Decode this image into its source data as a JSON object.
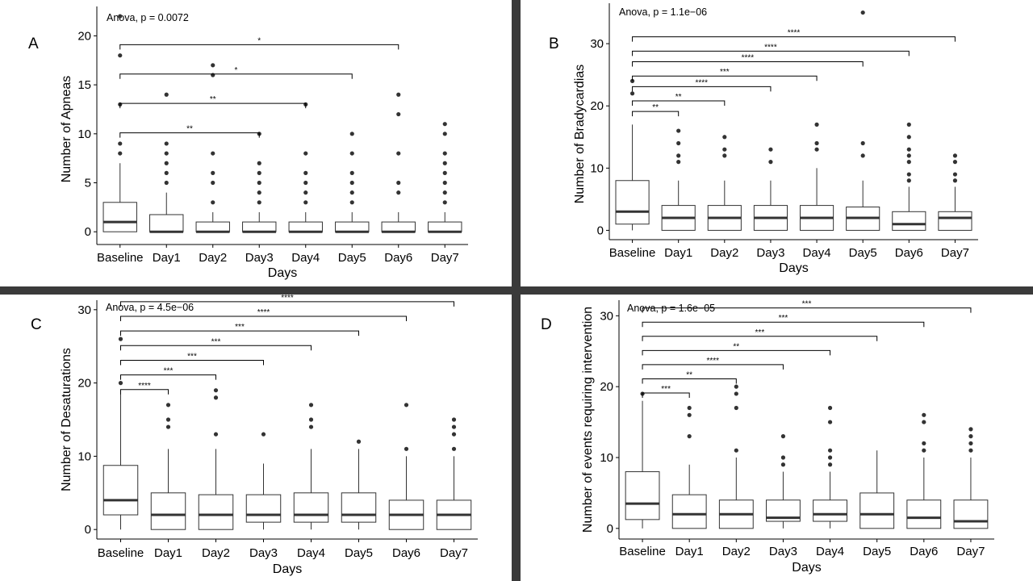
{
  "colors": {
    "divider": "#3a3a3a",
    "box_edge": "#333333",
    "points": "#333333"
  },
  "chart_data": [
    {
      "panel": "A",
      "type": "box",
      "anova_text": "Anova, p = 0.0072",
      "xlabel": "Days",
      "ylabel": "Number of Apneas",
      "ylim": [
        -1.3,
        23
      ],
      "yticks": [
        0,
        5,
        10,
        15,
        20
      ],
      "categories": [
        "Baseline",
        "Day1",
        "Day2",
        "Day3",
        "Day4",
        "Day5",
        "Day6",
        "Day7"
      ],
      "boxes": [
        {
          "q1": 0,
          "median": 1,
          "q3": 3,
          "lo": 0,
          "hi": 7,
          "outliers": [
            8,
            9,
            13,
            18,
            22
          ]
        },
        {
          "q1": 0,
          "median": 0,
          "q3": 1.75,
          "lo": 0,
          "hi": 4,
          "outliers": [
            5,
            6,
            7,
            8,
            9,
            14
          ]
        },
        {
          "q1": 0,
          "median": 0,
          "q3": 1,
          "lo": 0,
          "hi": 2,
          "outliers": [
            3,
            5,
            6,
            8,
            16,
            17
          ]
        },
        {
          "q1": 0,
          "median": 0,
          "q3": 1,
          "lo": 0,
          "hi": 2,
          "outliers": [
            3,
            4,
            5,
            6,
            7,
            10
          ]
        },
        {
          "q1": 0,
          "median": 0,
          "q3": 1,
          "lo": 0,
          "hi": 2,
          "outliers": [
            3,
            4,
            5,
            6,
            8,
            13
          ]
        },
        {
          "q1": 0,
          "median": 0,
          "q3": 1,
          "lo": 0,
          "hi": 2,
          "outliers": [
            3,
            4,
            5,
            6,
            8,
            10
          ]
        },
        {
          "q1": 0,
          "median": 0,
          "q3": 1,
          "lo": 0,
          "hi": 2,
          "outliers": [
            4,
            5,
            8,
            12,
            14
          ]
        },
        {
          "q1": 0,
          "median": 0,
          "q3": 1,
          "lo": 0,
          "hi": 2,
          "outliers": [
            3,
            4,
            5,
            6,
            7,
            8,
            10,
            11
          ]
        }
      ],
      "comparisons": [
        {
          "from": 0,
          "to": 3,
          "y": 10.1,
          "label": "**"
        },
        {
          "from": 0,
          "to": 4,
          "y": 13.1,
          "label": "**"
        },
        {
          "from": 0,
          "to": 5,
          "y": 16.1,
          "label": "*"
        },
        {
          "from": 0,
          "to": 6,
          "y": 19.1,
          "label": "*"
        }
      ]
    },
    {
      "panel": "B",
      "type": "box",
      "anova_text": "Anova, p = 1.1e−06",
      "xlabel": "Days",
      "ylabel": "Number of Bradycardias",
      "ylim": [
        -1.5,
        36.5
      ],
      "yticks": [
        0,
        10,
        20,
        30
      ],
      "categories": [
        "Baseline",
        "Day1",
        "Day2",
        "Day3",
        "Day4",
        "Day5",
        "Day6",
        "Day7"
      ],
      "boxes": [
        {
          "q1": 1,
          "median": 3,
          "q3": 8,
          "lo": 0,
          "hi": 17,
          "outliers": [
            22,
            24
          ]
        },
        {
          "q1": 0,
          "median": 2,
          "q3": 4,
          "lo": 0,
          "hi": 8,
          "outliers": [
            11,
            12,
            14,
            16
          ]
        },
        {
          "q1": 0,
          "median": 2,
          "q3": 4,
          "lo": 0,
          "hi": 8,
          "outliers": [
            12,
            13,
            15
          ]
        },
        {
          "q1": 0,
          "median": 2,
          "q3": 4,
          "lo": 0,
          "hi": 8,
          "outliers": [
            11,
            13
          ]
        },
        {
          "q1": 0,
          "median": 2,
          "q3": 4,
          "lo": 0,
          "hi": 10,
          "outliers": [
            13,
            14,
            17
          ]
        },
        {
          "q1": 0,
          "median": 2,
          "q3": 3.75,
          "lo": 0,
          "hi": 8,
          "outliers": [
            12,
            14,
            35
          ]
        },
        {
          "q1": 0,
          "median": 1,
          "q3": 3,
          "lo": 0,
          "hi": 7,
          "outliers": [
            8,
            9,
            11,
            12,
            13,
            15,
            17
          ]
        },
        {
          "q1": 0,
          "median": 2,
          "q3": 3,
          "lo": 0,
          "hi": 7,
          "outliers": [
            8,
            9,
            11,
            12
          ]
        }
      ],
      "comparisons": [
        {
          "from": 0,
          "to": 1,
          "y": 19.1,
          "label": "**"
        },
        {
          "from": 0,
          "to": 2,
          "y": 20.8,
          "label": "**"
        },
        {
          "from": 0,
          "to": 3,
          "y": 23.1,
          "label": "****"
        },
        {
          "from": 0,
          "to": 4,
          "y": 24.8,
          "label": "***"
        },
        {
          "from": 0,
          "to": 5,
          "y": 27.1,
          "label": "****"
        },
        {
          "from": 0,
          "to": 6,
          "y": 28.8,
          "label": "****"
        },
        {
          "from": 0,
          "to": 7,
          "y": 31.1,
          "label": "****"
        }
      ]
    },
    {
      "panel": "C",
      "type": "box",
      "anova_text": "Anova, p = 4.5e−06",
      "xlabel": "Days",
      "ylabel": "Number of Desaturations",
      "ylim": [
        -1.3,
        31.3
      ],
      "yticks": [
        0,
        10,
        20,
        30
      ],
      "categories": [
        "Baseline",
        "Day1",
        "Day2",
        "Day3",
        "Day4",
        "Day5",
        "Day6",
        "Day7"
      ],
      "boxes": [
        {
          "q1": 2,
          "median": 4,
          "q3": 8.75,
          "lo": 0,
          "hi": 19,
          "outliers": [
            20,
            26
          ]
        },
        {
          "q1": 0,
          "median": 2,
          "q3": 5,
          "lo": 0,
          "hi": 11,
          "outliers": [
            14,
            15,
            17
          ]
        },
        {
          "q1": 0,
          "median": 2,
          "q3": 4.75,
          "lo": 0,
          "hi": 11,
          "outliers": [
            13,
            18,
            19
          ]
        },
        {
          "q1": 1,
          "median": 2,
          "q3": 4.75,
          "lo": 0,
          "hi": 9,
          "outliers": [
            13
          ]
        },
        {
          "q1": 1,
          "median": 2,
          "q3": 5,
          "lo": 0,
          "hi": 11,
          "outliers": [
            14,
            15,
            17
          ]
        },
        {
          "q1": 1,
          "median": 2,
          "q3": 5,
          "lo": 0,
          "hi": 11,
          "outliers": [
            12
          ]
        },
        {
          "q1": 0,
          "median": 2,
          "q3": 4,
          "lo": 0,
          "hi": 10,
          "outliers": [
            11,
            17
          ]
        },
        {
          "q1": 0,
          "median": 2,
          "q3": 4,
          "lo": 0,
          "hi": 10,
          "outliers": [
            11,
            13,
            14,
            15
          ]
        }
      ],
      "comparisons": [
        {
          "from": 0,
          "to": 1,
          "y": 19.1,
          "label": "****"
        },
        {
          "from": 0,
          "to": 2,
          "y": 21.1,
          "label": "***"
        },
        {
          "from": 0,
          "to": 3,
          "y": 23.1,
          "label": "***"
        },
        {
          "from": 0,
          "to": 4,
          "y": 25.1,
          "label": "***"
        },
        {
          "from": 0,
          "to": 5,
          "y": 27.1,
          "label": "***"
        },
        {
          "from": 0,
          "to": 6,
          "y": 29.1,
          "label": "****"
        },
        {
          "from": 0,
          "to": 7,
          "y": 31.1,
          "label": "****"
        }
      ]
    },
    {
      "panel": "D",
      "type": "box",
      "anova_text": "Anova, p = 1.6e−05",
      "xlabel": "Days",
      "ylabel": "Number of events requiring intervention",
      "ylim": [
        -1.5,
        32.2
      ],
      "yticks": [
        0,
        10,
        20,
        30
      ],
      "categories": [
        "Baseline",
        "Day1",
        "Day2",
        "Day3",
        "Day4",
        "Day5",
        "Day6",
        "Day7"
      ],
      "boxes": [
        {
          "q1": 1.25,
          "median": 3.5,
          "q3": 8,
          "lo": 0,
          "hi": 18,
          "outliers": [
            19
          ]
        },
        {
          "q1": 0,
          "median": 2,
          "q3": 4.75,
          "lo": 0,
          "hi": 9,
          "outliers": [
            13,
            16,
            17
          ]
        },
        {
          "q1": 0,
          "median": 2,
          "q3": 4,
          "lo": 0,
          "hi": 10,
          "outliers": [
            11,
            17,
            19,
            20
          ]
        },
        {
          "q1": 1,
          "median": 1.5,
          "q3": 4,
          "lo": 0,
          "hi": 8,
          "outliers": [
            9,
            10,
            13
          ]
        },
        {
          "q1": 1,
          "median": 2,
          "q3": 4,
          "lo": 0,
          "hi": 8,
          "outliers": [
            9,
            10,
            11,
            15,
            17
          ]
        },
        {
          "q1": 0,
          "median": 2,
          "q3": 5,
          "lo": 0,
          "hi": 11,
          "outliers": []
        },
        {
          "q1": 0,
          "median": 1.5,
          "q3": 4,
          "lo": 0,
          "hi": 10,
          "outliers": [
            11,
            12,
            15,
            16
          ]
        },
        {
          "q1": 0,
          "median": 1,
          "q3": 4,
          "lo": 0,
          "hi": 10,
          "outliers": [
            11,
            12,
            13,
            14
          ]
        }
      ],
      "comparisons": [
        {
          "from": 0,
          "to": 1,
          "y": 19.1,
          "label": "***"
        },
        {
          "from": 0,
          "to": 2,
          "y": 21.1,
          "label": "**"
        },
        {
          "from": 0,
          "to": 3,
          "y": 23.1,
          "label": "****"
        },
        {
          "from": 0,
          "to": 4,
          "y": 25.1,
          "label": "**"
        },
        {
          "from": 0,
          "to": 5,
          "y": 27.1,
          "label": "***"
        },
        {
          "from": 0,
          "to": 6,
          "y": 29.1,
          "label": "***"
        },
        {
          "from": 0,
          "to": 7,
          "y": 31.1,
          "label": "***"
        }
      ]
    }
  ]
}
